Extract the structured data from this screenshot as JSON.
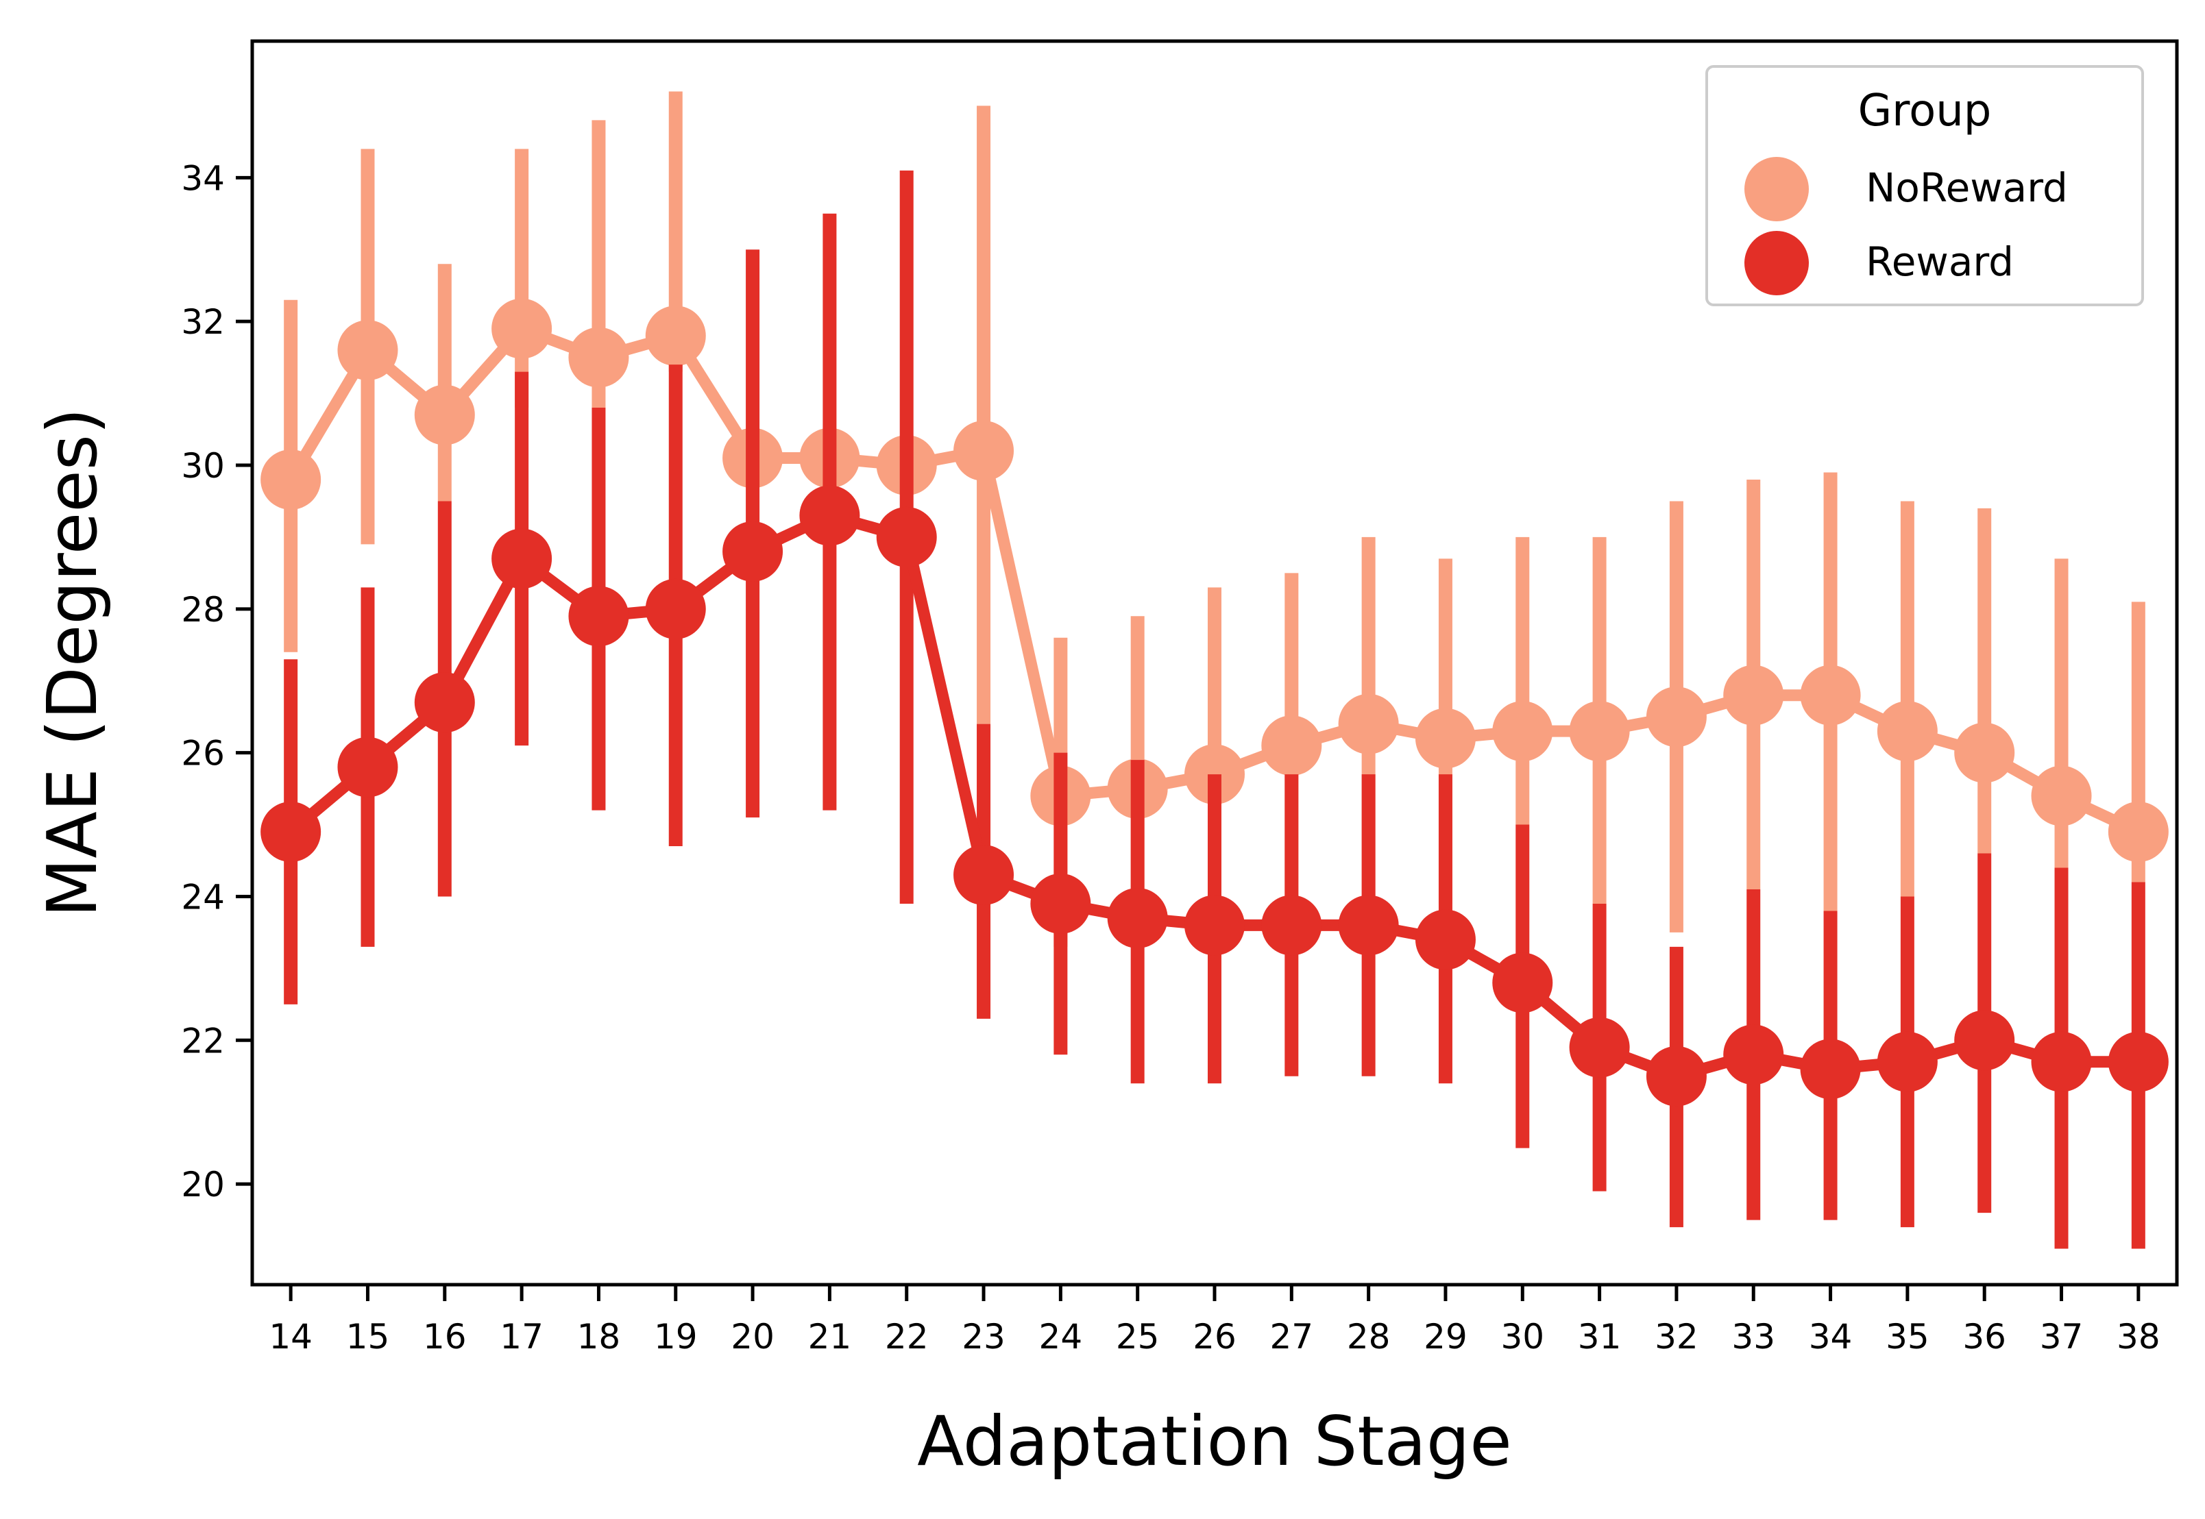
{
  "chart_data": {
    "type": "line",
    "xlabel": "Adaptation Stage",
    "ylabel": "MAE (Degrees)",
    "x": [
      14,
      15,
      16,
      17,
      18,
      19,
      20,
      21,
      22,
      23,
      24,
      25,
      26,
      27,
      28,
      29,
      30,
      31,
      32,
      33,
      34,
      35,
      36,
      37,
      38
    ],
    "xlim": [
      13.5,
      38.5
    ],
    "ylim": [
      18.6,
      35.9
    ],
    "yticks": [
      20,
      22,
      24,
      26,
      28,
      30,
      32,
      34
    ],
    "error_bars": true,
    "grid": false,
    "legend": {
      "title": "Group",
      "placement": "top-right"
    },
    "series": [
      {
        "name": "NoReward",
        "color": "#f9a080",
        "values": [
          29.8,
          31.6,
          30.7,
          31.9,
          31.5,
          31.8,
          30.1,
          30.1,
          30.0,
          30.2,
          25.4,
          25.5,
          25.7,
          26.1,
          26.4,
          26.2,
          26.3,
          26.3,
          26.5,
          26.8,
          26.8,
          26.3,
          26.0,
          25.4,
          24.9
        ],
        "lower": [
          27.4,
          28.9,
          29.5,
          30.8,
          30.8,
          31.3,
          29.8,
          29.7,
          29.9,
          26.4,
          23.3,
          23.4,
          23.5,
          23.8,
          24.0,
          23.9,
          25.0,
          23.9,
          23.5,
          24.1,
          23.8,
          24.0,
          24.6,
          24.4,
          24.2
        ],
        "upper": [
          32.3,
          34.4,
          32.8,
          34.4,
          34.8,
          35.2,
          30.3,
          30.3,
          30.1,
          35.0,
          27.6,
          27.9,
          28.3,
          28.5,
          29.0,
          28.7,
          29.0,
          29.0,
          29.5,
          29.8,
          29.9,
          29.5,
          29.4,
          28.7,
          28.1
        ]
      },
      {
        "name": "Reward",
        "color": "#e32f27",
        "values": [
          24.9,
          25.8,
          26.7,
          28.7,
          27.9,
          28.0,
          28.8,
          29.3,
          29.0,
          24.3,
          23.9,
          23.7,
          23.6,
          23.6,
          23.6,
          23.4,
          22.8,
          21.9,
          21.5,
          21.8,
          21.6,
          21.7,
          22.0,
          21.7,
          21.7
        ],
        "lower": [
          22.5,
          23.3,
          24.0,
          26.1,
          25.2,
          24.7,
          25.1,
          25.2,
          23.9,
          22.3,
          21.8,
          21.4,
          21.4,
          21.5,
          21.5,
          21.4,
          20.5,
          19.9,
          19.4,
          19.5,
          19.5,
          19.4,
          19.6,
          19.1,
          19.1
        ],
        "upper": [
          27.3,
          28.3,
          29.5,
          31.3,
          30.8,
          31.4,
          33.0,
          33.5,
          34.1,
          26.4,
          26.0,
          25.9,
          25.7,
          25.7,
          25.7,
          25.7,
          25.0,
          23.9,
          23.3,
          24.1,
          23.8,
          24.0,
          24.6,
          24.4,
          24.2
        ]
      }
    ]
  }
}
